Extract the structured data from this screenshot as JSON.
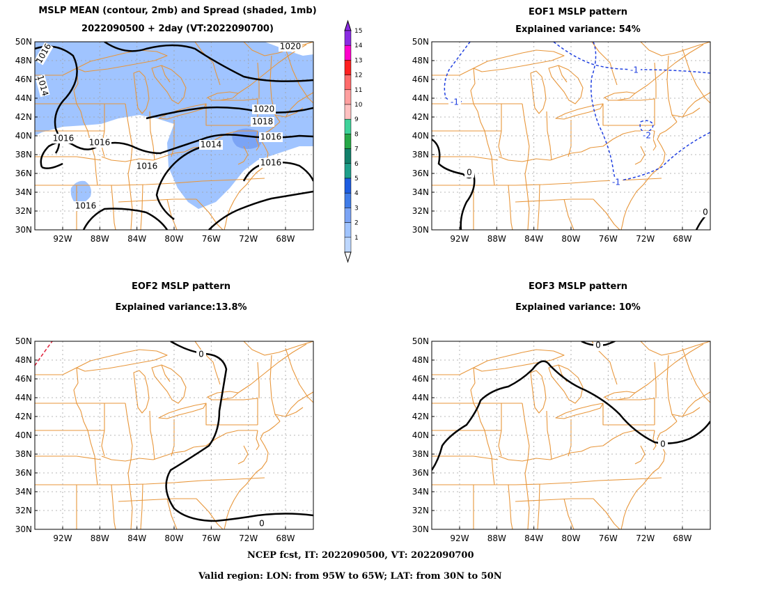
{
  "panel_a": {
    "title_line1": "MSLP MEAN (contour, 2mb) and Spread (shaded, 1mb)",
    "title_line2": "2022090500 + 2day (VT:2022090700)",
    "contour_labels": [
      "1016",
      "1014",
      "1020",
      "1020",
      "1018",
      "1016",
      "1016",
      "1016",
      "1014",
      "1016",
      "1016",
      "1016"
    ]
  },
  "colorbar": {
    "levels": [
      "1",
      "2",
      "3",
      "4",
      "5",
      "6",
      "7",
      "8",
      "9",
      "10",
      "11",
      "12",
      "13",
      "14",
      "15"
    ],
    "colors": [
      "#bdd7ff",
      "#a0c4ff",
      "#7ba4f5",
      "#3f7ce8",
      "#1d5ce0",
      "#1e9f8a",
      "#12806b",
      "#26a847",
      "#3ed39a",
      "#ffc1c1",
      "#ff9f9f",
      "#ff6b6b",
      "#ff2020",
      "#ff00cc",
      "#8a2be2"
    ]
  },
  "panel_b": {
    "title_line1": "EOF1 MSLP pattern",
    "title_line2": "Explained variance: 54%",
    "contour_labels": [
      "-1",
      "-1",
      "-2",
      "-1",
      "0",
      "0"
    ]
  },
  "panel_c": {
    "title_line1": "EOF2 MSLP pattern",
    "title_line2": "Explained variance:13.8%",
    "contour_labels": [
      "0",
      "0"
    ]
  },
  "panel_d": {
    "title_line1": "EOF3 MSLP pattern",
    "title_line2": "Explained variance: 10%",
    "contour_labels": [
      "0",
      "0"
    ]
  },
  "axes": {
    "lat_labels": [
      "50N",
      "48N",
      "46N",
      "44N",
      "42N",
      "40N",
      "38N",
      "36N",
      "34N",
      "32N",
      "30N"
    ],
    "lon_labels": [
      "92W",
      "88W",
      "84W",
      "80W",
      "76W",
      "72W",
      "68W"
    ]
  },
  "footer": {
    "line1": "NCEP fcst, IT: 2022090500, VT: 2022090700",
    "line2": "Valid region: LON: from 95W to 65W; LAT: from 30N to 50N"
  },
  "map_colors": {
    "border": "#e8963a",
    "grid": "#a0a0a0"
  }
}
